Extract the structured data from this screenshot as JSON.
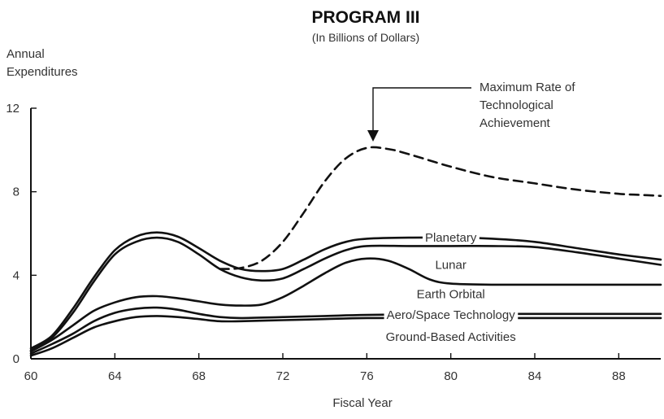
{
  "chart_data": {
    "type": "line",
    "title": "PROGRAM III",
    "subtitle": "(In Billions of Dollars)",
    "ylabel": [
      "Annual",
      "Expenditures"
    ],
    "xlabel": "Fiscal Year",
    "xlim": [
      60,
      90
    ],
    "ylim": [
      0,
      12
    ],
    "xticks": [
      60,
      64,
      68,
      72,
      76,
      80,
      84,
      88
    ],
    "yticks": [
      0,
      4,
      8,
      12
    ],
    "grid": false,
    "series": [
      {
        "name": "Ground-Based Activities",
        "x": [
          60,
          61,
          62,
          63,
          64,
          65,
          66,
          67,
          68,
          69,
          70,
          72,
          74,
          76,
          80,
          84,
          88,
          90
        ],
        "y": [
          0.15,
          0.5,
          1.0,
          1.5,
          1.8,
          2.0,
          2.05,
          2.0,
          1.9,
          1.8,
          1.8,
          1.85,
          1.9,
          1.95,
          1.95,
          1.95,
          1.95,
          1.95
        ]
      },
      {
        "name": "Aero/Space Technology",
        "x": [
          60,
          61,
          62,
          63,
          64,
          65,
          66,
          67,
          68,
          69,
          70,
          72,
          74,
          76,
          80,
          84,
          88,
          90
        ],
        "y": [
          0.25,
          0.7,
          1.2,
          1.8,
          2.2,
          2.4,
          2.45,
          2.35,
          2.15,
          2.0,
          1.95,
          2.0,
          2.05,
          2.1,
          2.15,
          2.15,
          2.15,
          2.15
        ]
      },
      {
        "name": "Earth Orbital",
        "x": [
          60,
          61,
          62,
          63,
          64,
          65,
          66,
          67,
          68,
          69,
          70,
          71,
          72,
          73,
          74,
          75,
          76,
          77,
          78,
          79,
          80,
          82,
          84,
          88,
          90
        ],
        "y": [
          0.35,
          0.9,
          1.6,
          2.3,
          2.7,
          2.95,
          3.0,
          2.9,
          2.75,
          2.6,
          2.55,
          2.6,
          2.95,
          3.5,
          4.1,
          4.6,
          4.8,
          4.7,
          4.3,
          3.8,
          3.6,
          3.55,
          3.55,
          3.55,
          3.55
        ]
      },
      {
        "name": "Lunar",
        "x": [
          60,
          61,
          62,
          63,
          64,
          65,
          66,
          67,
          68,
          69,
          70,
          71,
          72,
          73,
          74,
          75,
          76,
          78,
          80,
          82,
          84,
          86,
          88,
          90
        ],
        "y": [
          0.4,
          1.0,
          2.2,
          3.7,
          5.0,
          5.6,
          5.8,
          5.6,
          5.0,
          4.3,
          3.9,
          3.75,
          3.85,
          4.3,
          4.8,
          5.2,
          5.4,
          5.4,
          5.4,
          5.4,
          5.35,
          5.1,
          4.8,
          4.5
        ]
      },
      {
        "name": "Planetary",
        "x": [
          60,
          61,
          62,
          63,
          64,
          65,
          66,
          67,
          68,
          69,
          70,
          71,
          72,
          73,
          74,
          75,
          76,
          78,
          80,
          82,
          84,
          86,
          88,
          90
        ],
        "y": [
          0.5,
          1.1,
          2.4,
          3.9,
          5.2,
          5.85,
          6.05,
          5.85,
          5.3,
          4.7,
          4.3,
          4.2,
          4.3,
          4.75,
          5.25,
          5.6,
          5.75,
          5.8,
          5.8,
          5.75,
          5.6,
          5.3,
          5.0,
          4.75
        ]
      },
      {
        "name": "Maximum Rate of Technological Achievement",
        "dashed": true,
        "x": [
          69,
          70,
          71,
          72,
          73,
          74,
          75,
          76,
          77,
          78,
          80,
          82,
          84,
          86,
          88,
          89,
          90
        ],
        "y": [
          4.3,
          4.35,
          4.7,
          5.6,
          7.0,
          8.5,
          9.6,
          10.1,
          10.05,
          9.8,
          9.2,
          8.7,
          8.4,
          8.1,
          7.9,
          7.85,
          7.8
        ]
      }
    ],
    "series_labels": [
      {
        "series": "Planetary",
        "text": "Planetary",
        "x": 80,
        "y": 5.8
      },
      {
        "series": "Lunar",
        "text": "Lunar",
        "x": 80,
        "y": 4.5
      },
      {
        "series": "Earth Orbital",
        "text": "Earth Orbital",
        "x": 80,
        "y": 3.1
      },
      {
        "series": "Aero/Space Technology",
        "text": "Aero/Space Technology",
        "x": 80,
        "y": 2.1
      },
      {
        "series": "Ground-Based Activities",
        "text": "Ground-Based Activities",
        "x": 80,
        "y": 1.05
      }
    ],
    "annotation": {
      "lines": [
        "Maximum Rate of",
        "Technological",
        "Achievement"
      ],
      "points_to": {
        "x": 76,
        "y": 10.1
      }
    }
  }
}
